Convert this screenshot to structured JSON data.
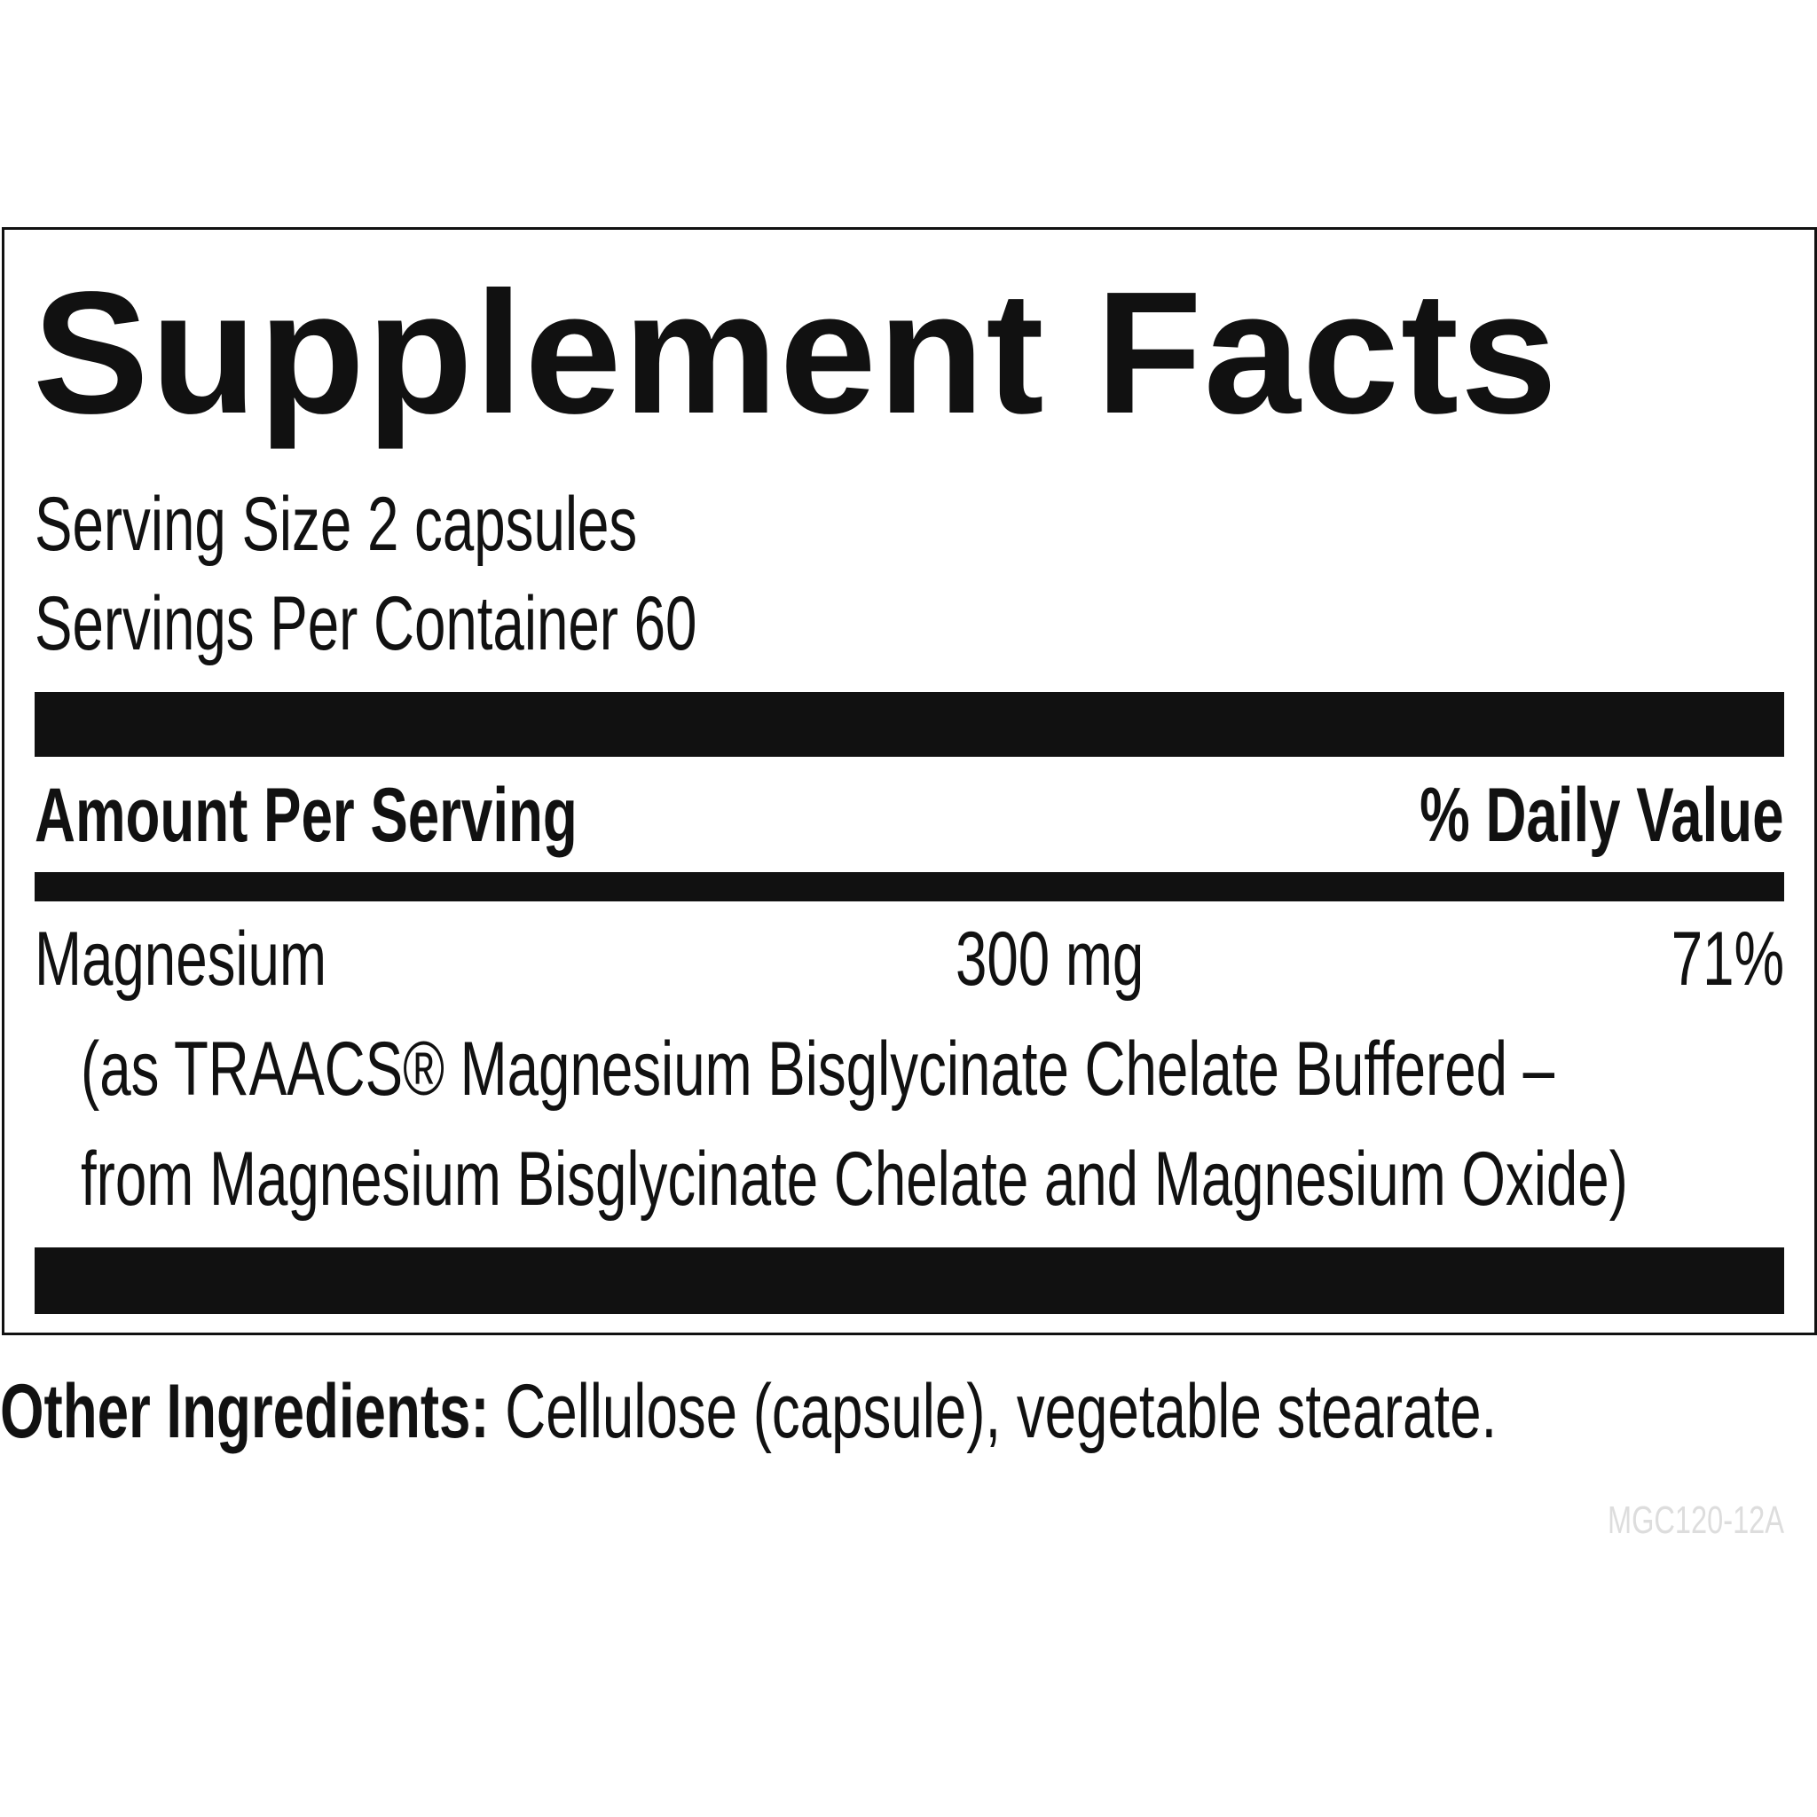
{
  "title": "Supplement Facts",
  "serving_size": "Serving Size 2 capsules",
  "servings_per_container": "Servings Per Container 60",
  "header": {
    "amount": "Amount Per Serving",
    "daily_value": "% Daily Value"
  },
  "nutrients": [
    {
      "name": "Magnesium",
      "amount": "300 mg",
      "dv": "71%",
      "source_line1": "(as TRAACS® Magnesium Bisglycinate Chelate Buffered –",
      "source_line2": "from Magnesium Bisglycinate Chelate and Magnesium Oxide)"
    }
  ],
  "other_ingredients": {
    "label": "Other Ingredients:",
    "text": " Cellulose (capsule), vegetable stearate."
  },
  "product_code": "MGC120-12A"
}
